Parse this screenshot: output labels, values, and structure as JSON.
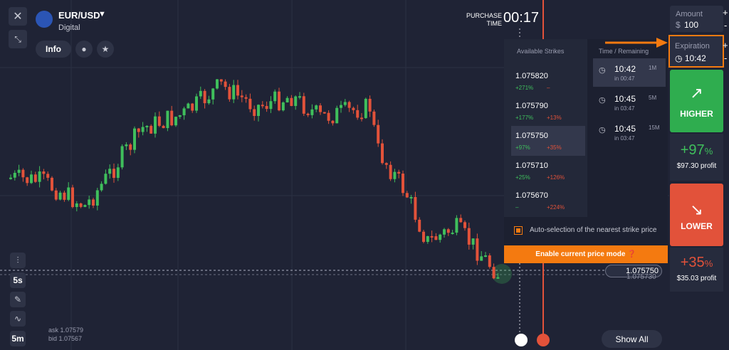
{
  "header": {
    "pair": "EUR/USD",
    "type": "Digital",
    "info": "Info"
  },
  "purchase_time": {
    "label": "PURCHASE TIME",
    "value": "00:17"
  },
  "amount": {
    "label": "Amount",
    "currency": "$",
    "value": "100",
    "plus": "+",
    "minus": "-"
  },
  "expiration": {
    "label": "Expiration",
    "value": "10:42",
    "plus": "+",
    "minus": "-"
  },
  "strikes": {
    "title": "Available Strikes",
    "rows": [
      {
        "price": "1.075820",
        "up": "+271%",
        "down": "–"
      },
      {
        "price": "1.075790",
        "up": "+177%",
        "down": "+13%"
      },
      {
        "price": "1.075750",
        "up": "+97%",
        "down": "+35%"
      },
      {
        "price": "1.075710",
        "up": "+25%",
        "down": "+126%"
      },
      {
        "price": "1.075670",
        "up": "–",
        "down": "+224%"
      }
    ]
  },
  "times": {
    "title": "Time / Remaining",
    "rows": [
      {
        "time": "10:42",
        "remaining": "in 00:47",
        "period": "1M"
      },
      {
        "time": "10:45",
        "remaining": "in 03:47",
        "period": "5M"
      },
      {
        "time": "10:45",
        "remaining": "in 03:47",
        "period": "15M"
      }
    ]
  },
  "auto_selection": "Auto-selection of the nearest strike price",
  "price_mode": "Enable current price mode",
  "higher": {
    "label": "HIGHER",
    "percent": "+97",
    "unit": "%",
    "profit": "$97.30 profit"
  },
  "lower": {
    "label": "LOWER",
    "percent": "+35",
    "unit": "%",
    "profit": "$35.03 profit"
  },
  "price_tags": {
    "current": "1.075750",
    "strike": "1.075730"
  },
  "tools": {
    "interval_1": "5s",
    "interval_2": "5m"
  },
  "quote": {
    "ask": "ask 1.07579",
    "bid": "bid 1.07567"
  },
  "show_all": "Show All"
}
